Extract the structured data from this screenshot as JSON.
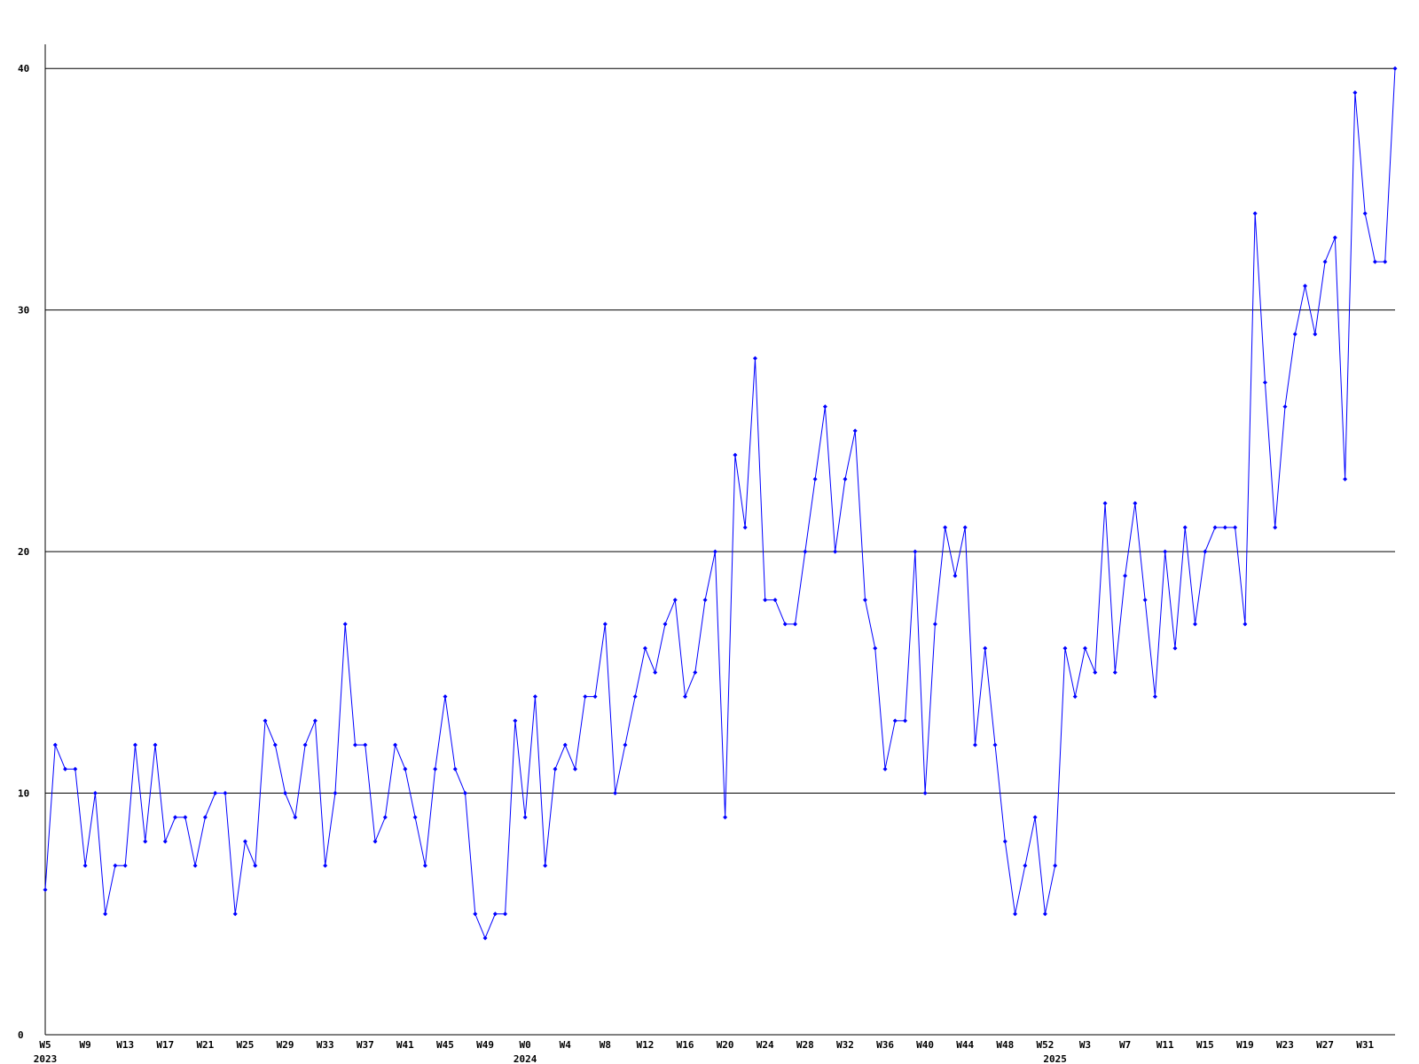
{
  "chart_data": {
    "type": "line",
    "categories": [
      "W5",
      null,
      null,
      null,
      "W9",
      null,
      null,
      null,
      "W13",
      null,
      null,
      null,
      "W17",
      null,
      null,
      null,
      "W21",
      null,
      null,
      null,
      "W25",
      null,
      null,
      null,
      "W29",
      null,
      null,
      null,
      "W33",
      null,
      null,
      null,
      "W37",
      null,
      null,
      null,
      "W41",
      null,
      null,
      null,
      "W45",
      null,
      null,
      null,
      "W49",
      null,
      null,
      null,
      "W0",
      null,
      null,
      null,
      "W4",
      null,
      null,
      null,
      "W8",
      null,
      null,
      null,
      "W12",
      null,
      null,
      null,
      "W16",
      null,
      null,
      null,
      "W20",
      null,
      null,
      null,
      "W24",
      null,
      null,
      null,
      "W28",
      null,
      null,
      null,
      "W32",
      null,
      null,
      null,
      "W36",
      null,
      null,
      null,
      "W40",
      null,
      null,
      null,
      "W44",
      null,
      null,
      null,
      "W48",
      null,
      null,
      null,
      "W52",
      null,
      null,
      null,
      "W3",
      null,
      null,
      null,
      "W7",
      null,
      null,
      null,
      "W11",
      null,
      null,
      null,
      "W15",
      null,
      null,
      null,
      "W19",
      null,
      null,
      null,
      "W23",
      null,
      null,
      null,
      "W27",
      null,
      null,
      null,
      "W31",
      null,
      null,
      null
    ],
    "years": [
      "2023",
      null,
      null,
      null,
      null,
      null,
      null,
      null,
      null,
      null,
      null,
      null,
      null,
      null,
      null,
      null,
      null,
      null,
      null,
      null,
      null,
      null,
      null,
      null,
      null,
      null,
      null,
      null,
      null,
      null,
      null,
      null,
      null,
      null,
      null,
      null,
      null,
      null,
      null,
      null,
      null,
      null,
      null,
      null,
      null,
      null,
      null,
      null,
      "2024",
      null,
      null,
      null,
      null,
      null,
      null,
      null,
      null,
      null,
      null,
      null,
      null,
      null,
      null,
      null,
      null,
      null,
      null,
      null,
      null,
      null,
      null,
      null,
      null,
      null,
      null,
      null,
      null,
      null,
      null,
      null,
      null,
      null,
      null,
      null,
      null,
      null,
      null,
      null,
      null,
      null,
      null,
      null,
      null,
      null,
      null,
      null,
      null,
      null,
      null,
      null,
      null,
      "2025",
      null,
      null,
      null,
      null,
      null,
      null,
      null,
      null,
      null,
      null,
      null,
      null,
      null,
      null,
      null,
      null,
      null,
      null,
      null,
      null,
      null,
      null,
      null,
      null,
      null,
      null,
      null,
      null,
      null,
      null,
      null,
      null,
      null,
      null
    ],
    "series": [
      {
        "color": "#0000ff",
        "values": [
          6,
          12,
          11,
          11,
          7,
          10,
          5,
          7,
          7,
          12,
          8,
          12,
          8,
          9,
          9,
          7,
          9,
          10,
          10,
          5,
          8,
          7,
          13,
          12,
          10,
          9,
          12,
          13,
          7,
          10,
          17,
          12,
          12,
          8,
          9,
          12,
          11,
          9,
          7,
          11,
          14,
          11,
          10,
          5,
          4,
          5,
          5,
          13,
          9,
          14,
          7,
          11,
          12,
          11,
          14,
          14,
          17,
          10,
          12,
          14,
          16,
          15,
          17,
          18,
          14,
          15,
          18,
          20,
          9,
          24,
          21,
          28,
          18,
          18,
          17,
          17,
          20,
          23,
          26,
          20,
          23,
          25,
          18,
          16,
          11,
          13,
          13,
          20,
          10,
          17,
          21,
          19,
          21,
          12,
          16,
          12,
          8,
          5,
          7,
          9,
          5,
          7,
          16,
          14,
          16,
          15,
          22,
          15,
          19,
          22,
          18,
          14,
          20,
          16,
          21,
          17,
          20,
          21,
          21,
          21,
          17,
          34,
          27,
          21,
          26,
          29,
          31,
          29,
          32,
          33,
          23,
          39,
          34,
          32,
          32,
          40
        ]
      }
    ],
    "ylim": [
      0,
      41
    ],
    "yticks": [
      0,
      10,
      20,
      30,
      40
    ],
    "grid": true
  }
}
